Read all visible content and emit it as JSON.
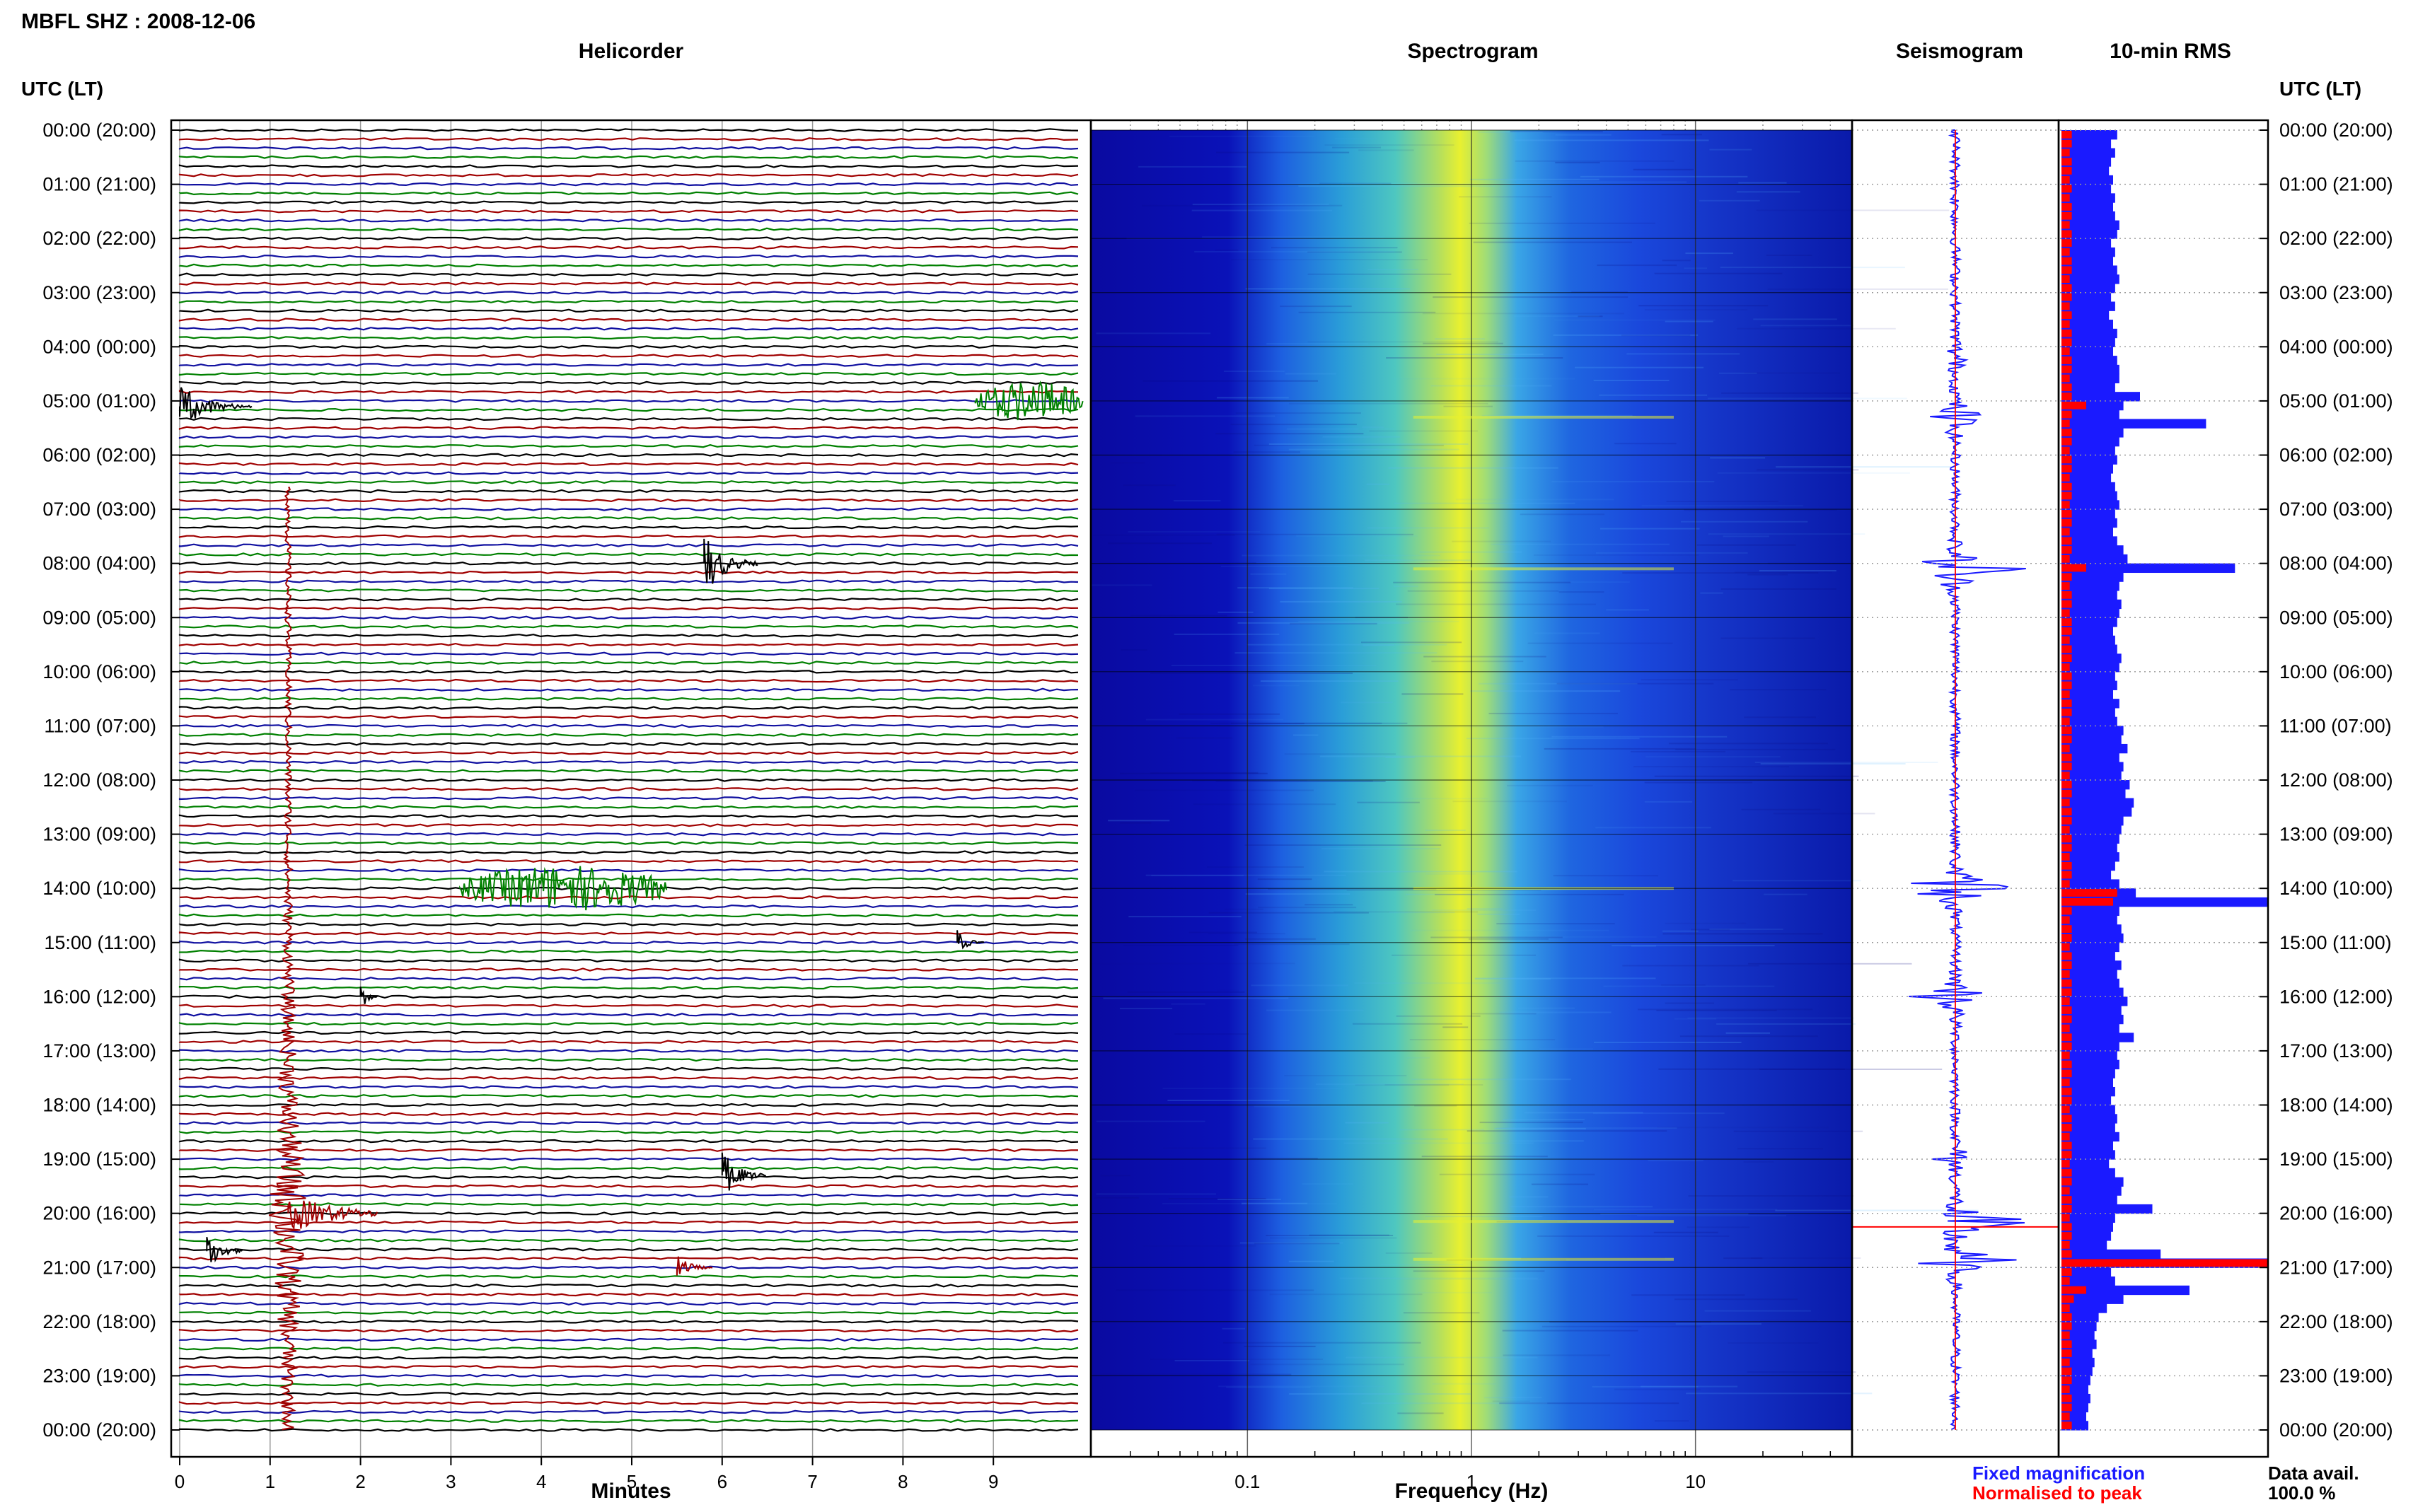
{
  "figure": {
    "station_title": "MBFL SHZ : 2008-12-06",
    "panel_titles": {
      "helicorder": "Helicorder",
      "spectrogram": "Spectrogram",
      "seismogram": "Seismogram",
      "rms": "10-min RMS"
    },
    "time_axis_label": "UTC (LT)",
    "x_labels": {
      "helicorder": "Minutes",
      "spectrogram": "Frequency (Hz)"
    },
    "legend": {
      "fixed": "Fixed magnification",
      "normalised": "Normalised to peak",
      "data_avail_label": "Data avail.",
      "data_avail_value": "100.0 %"
    },
    "colors": {
      "trace_cycle": [
        "#000000",
        "#a00000",
        "#1010a0",
        "#008000"
      ],
      "seismogram": "#1a1aff",
      "rms_fixed": "#1a1aff",
      "rms_normalised": "#ff0000",
      "spectrogram_low": "#0a0aa0",
      "spectrogram_high": "#e8f030"
    }
  },
  "chart_data": {
    "type": "heatmap",
    "time_ticks": [
      "00:00 (20:00)",
      "01:00 (21:00)",
      "02:00 (22:00)",
      "03:00 (23:00)",
      "04:00 (00:00)",
      "05:00 (01:00)",
      "06:00 (02:00)",
      "07:00 (03:00)",
      "08:00 (04:00)",
      "09:00 (05:00)",
      "10:00 (06:00)",
      "11:00 (07:00)",
      "12:00 (08:00)",
      "13:00 (09:00)",
      "14:00 (10:00)",
      "15:00 (11:00)",
      "16:00 (12:00)",
      "17:00 (13:00)",
      "18:00 (14:00)",
      "19:00 (15:00)",
      "20:00 (16:00)",
      "21:00 (17:00)",
      "22:00 (18:00)",
      "23:00 (19:00)",
      "00:00 (20:00)"
    ],
    "helicorder": {
      "xlabel": "Minutes",
      "xlim": [
        0,
        10
      ],
      "xticks": [
        0,
        1,
        2,
        3,
        4,
        5,
        6,
        7,
        8,
        9
      ],
      "lines_per_hour": 6,
      "events": [
        {
          "hour": 5.1,
          "minute": 0.0,
          "duration_min": 0.8,
          "amp": 0.9,
          "color": "#000000"
        },
        {
          "hour": 5.0,
          "minute": 8.8,
          "duration_min": 1.2,
          "amp": 0.8,
          "color": "#008000"
        },
        {
          "hour": 8.0,
          "minute": 5.8,
          "duration_min": 0.6,
          "amp": 1.3,
          "color": "#000000"
        },
        {
          "hour": 14.0,
          "minute": 3.1,
          "duration_min": 2.3,
          "amp": 0.9,
          "color": "#008000"
        },
        {
          "hour": 15.0,
          "minute": 8.6,
          "duration_min": 0.3,
          "amp": 0.5,
          "color": "#000000"
        },
        {
          "hour": 16.0,
          "minute": 2.0,
          "duration_min": 0.2,
          "amp": 0.6,
          "color": "#000000"
        },
        {
          "hour": 19.3,
          "minute": 6.0,
          "duration_min": 0.5,
          "amp": 1.0,
          "color": "#000000"
        },
        {
          "hour": 20.7,
          "minute": 0.3,
          "duration_min": 0.4,
          "amp": 0.9,
          "color": "#000000"
        },
        {
          "hour": 21.0,
          "minute": 5.5,
          "duration_min": 0.4,
          "amp": 0.5,
          "color": "#a00000"
        }
      ],
      "spike": {
        "minute": 1.2,
        "hour_start": 6.6,
        "hour_end": 24.0,
        "peak_hour": 20.0
      }
    },
    "spectrogram": {
      "xlabel": "Frequency (Hz)",
      "xscale": "log",
      "xlim": [
        0.02,
        50
      ],
      "xticks": [
        0.1,
        1,
        10
      ],
      "peak_frequency_hz": 1.0
    },
    "rms": {
      "series": [
        {
          "name": "Fixed magnification",
          "values": [
            0.27,
            0.24,
            0.26,
            0.24,
            0.23,
            0.25,
            0.24,
            0.26,
            0.25,
            0.26,
            0.28,
            0.27,
            0.24,
            0.26,
            0.25,
            0.27,
            0.28,
            0.26,
            0.24,
            0.26,
            0.23,
            0.25,
            0.27,
            0.26,
            0.25,
            0.27,
            0.28,
            0.28,
            0.26,
            0.38,
            0.3,
            0.28,
            0.7,
            0.3,
            0.28,
            0.26,
            0.27,
            0.25,
            0.24,
            0.26,
            0.27,
            0.28,
            0.26,
            0.27,
            0.25,
            0.27,
            0.3,
            0.32,
            0.84,
            0.3,
            0.28,
            0.27,
            0.29,
            0.28,
            0.27,
            0.25,
            0.26,
            0.27,
            0.29,
            0.28,
            0.26,
            0.27,
            0.25,
            0.28,
            0.26,
            0.27,
            0.3,
            0.29,
            0.32,
            0.28,
            0.3,
            0.29,
            0.33,
            0.31,
            0.35,
            0.34,
            0.3,
            0.29,
            0.28,
            0.27,
            0.28,
            0.26,
            0.24,
            0.28,
            0.36,
            1.0,
            0.28,
            0.27,
            0.29,
            0.3,
            0.28,
            0.26,
            0.29,
            0.27,
            0.28,
            0.3,
            0.32,
            0.29,
            0.3,
            0.28,
            0.35,
            0.28,
            0.27,
            0.28,
            0.26,
            0.25,
            0.26,
            0.24,
            0.26,
            0.27,
            0.26,
            0.28,
            0.25,
            0.26,
            0.23,
            0.26,
            0.3,
            0.29,
            0.27,
            0.44,
            0.26,
            0.25,
            0.24,
            0.22,
            0.48,
            1.0,
            0.24,
            0.26,
            0.62,
            0.3,
            0.22,
            0.18,
            0.17,
            0.16,
            0.17,
            0.15,
            0.16,
            0.15,
            0.14,
            0.13,
            0.14,
            0.13,
            0.12,
            0.13
          ]
        },
        {
          "name": "Normalised to peak",
          "values": [
            0.05,
            0.05,
            0.04,
            0.05,
            0.05,
            0.04,
            0.05,
            0.04,
            0.05,
            0.05,
            0.04,
            0.05,
            0.05,
            0.04,
            0.05,
            0.05,
            0.04,
            0.05,
            0.05,
            0.04,
            0.05,
            0.04,
            0.05,
            0.05,
            0.04,
            0.05,
            0.05,
            0.04,
            0.05,
            0.05,
            0.12,
            0.05,
            0.04,
            0.05,
            0.05,
            0.04,
            0.05,
            0.05,
            0.04,
            0.05,
            0.05,
            0.04,
            0.05,
            0.05,
            0.04,
            0.05,
            0.05,
            0.04,
            0.12,
            0.05,
            0.04,
            0.05,
            0.05,
            0.04,
            0.05,
            0.05,
            0.04,
            0.05,
            0.05,
            0.04,
            0.05,
            0.05,
            0.04,
            0.05,
            0.05,
            0.04,
            0.05,
            0.05,
            0.04,
            0.05,
            0.05,
            0.04,
            0.05,
            0.05,
            0.04,
            0.05,
            0.05,
            0.04,
            0.05,
            0.05,
            0.04,
            0.05,
            0.05,
            0.04,
            0.27,
            0.25,
            0.05,
            0.04,
            0.05,
            0.05,
            0.04,
            0.05,
            0.05,
            0.04,
            0.05,
            0.05,
            0.04,
            0.05,
            0.05,
            0.04,
            0.05,
            0.05,
            0.04,
            0.05,
            0.05,
            0.04,
            0.05,
            0.05,
            0.04,
            0.05,
            0.05,
            0.04,
            0.05,
            0.05,
            0.04,
            0.05,
            0.05,
            0.04,
            0.05,
            0.05,
            0.04,
            0.05,
            0.05,
            0.04,
            0.05,
            1.0,
            0.05,
            0.04,
            0.12,
            0.06,
            0.04,
            0.05,
            0.05,
            0.04,
            0.05,
            0.05,
            0.04,
            0.05,
            0.05,
            0.04,
            0.05,
            0.05,
            0.04,
            0.05
          ]
        }
      ]
    }
  }
}
